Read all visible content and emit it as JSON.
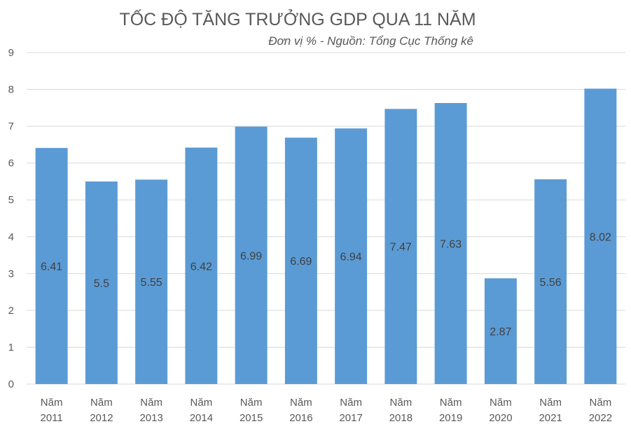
{
  "chart_data": {
    "type": "bar",
    "title": "TỐC ĐỘ TĂNG TRƯỞNG GDP QUA 11 NĂM",
    "subtitle": "Đơn vị % - Nguồn: Tổng Cục Thống kê",
    "categories": [
      [
        "Năm",
        "2011"
      ],
      [
        "Năm",
        "2012"
      ],
      [
        "Năm",
        "2013"
      ],
      [
        "Năm",
        "2014"
      ],
      [
        "Năm",
        "2015"
      ],
      [
        "Năm",
        "2016"
      ],
      [
        "Năm",
        "2017"
      ],
      [
        "Năm",
        "2018"
      ],
      [
        "Năm",
        "2019"
      ],
      [
        "Năm",
        "2020"
      ],
      [
        "Năm",
        "2021"
      ],
      [
        "Năm",
        "2022"
      ]
    ],
    "values": [
      6.41,
      5.5,
      5.55,
      6.42,
      6.99,
      6.69,
      6.94,
      7.47,
      7.63,
      2.87,
      5.56,
      8.02
    ],
    "value_labels": [
      "6.41",
      "5.5",
      "5.55",
      "6.42",
      "6.99",
      "6.69",
      "6.94",
      "7.47",
      "7.63",
      "2.87",
      "5.56",
      "8.02"
    ],
    "ylim": [
      0,
      9
    ],
    "yticks": [
      "0",
      "1",
      "2",
      "3",
      "4",
      "5",
      "6",
      "7",
      "8",
      "9"
    ],
    "grid": true,
    "bar_color": "#5b9bd5"
  }
}
